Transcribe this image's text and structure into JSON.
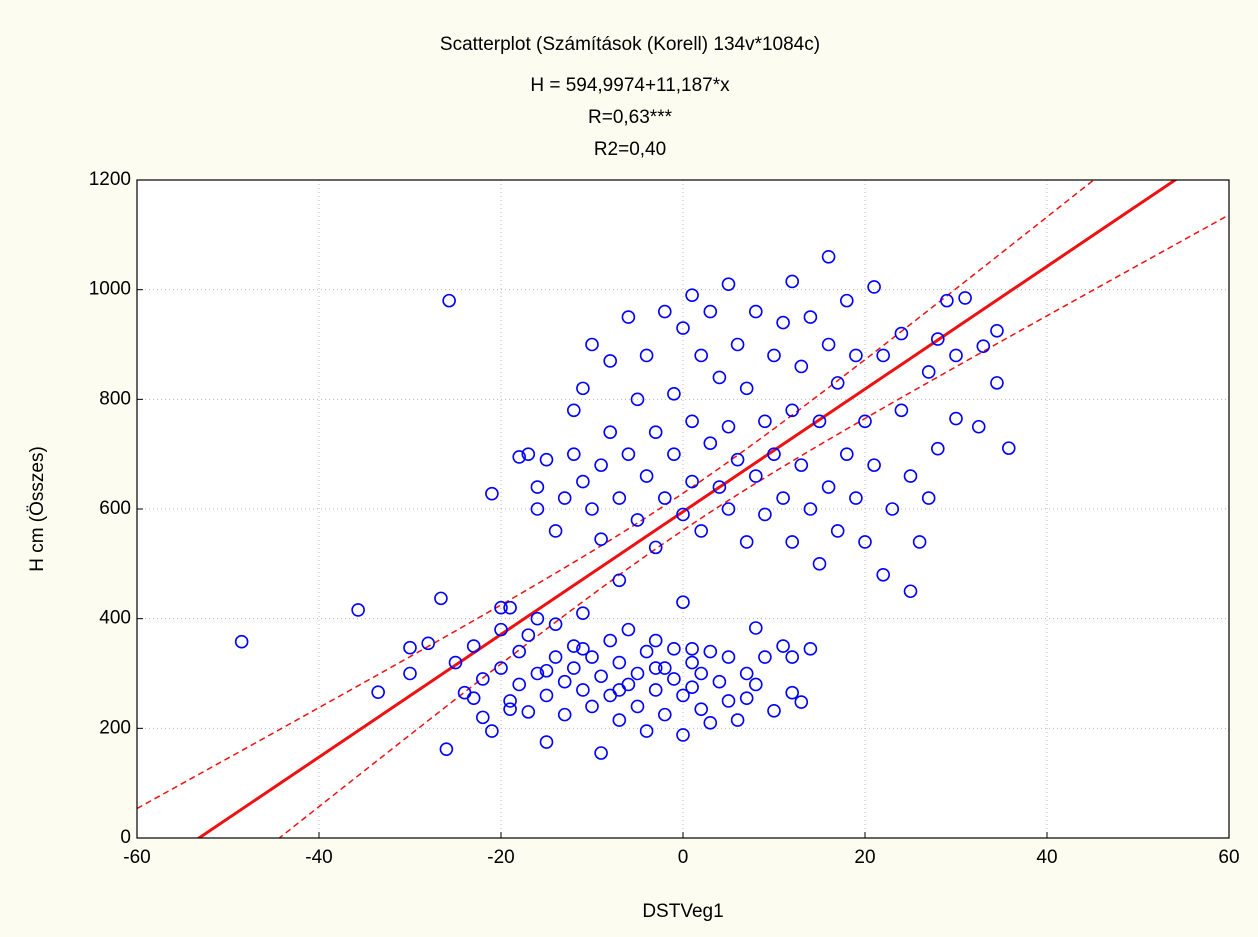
{
  "chart_data": {
    "type": "scatter",
    "title": "Scatterplot (Számítások (Korell) 134v*1084c)",
    "subtitle": [
      "H = 594,9974+11,187*x",
      "R=0,63***",
      "R2=0,40"
    ],
    "x_label": "DSTVeg1",
    "y_label": "H cm  (Összes)",
    "xlim": [
      -60,
      60
    ],
    "xticks": [
      -60,
      -40,
      -20,
      0,
      20,
      40,
      60
    ],
    "ylim": [
      0,
      1200
    ],
    "yticks": [
      0,
      200,
      400,
      600,
      800,
      1000,
      1200
    ],
    "grid": true,
    "fit": {
      "intercept": 594.9974,
      "slope": 11.187,
      "color": "#ee1111"
    },
    "series": [
      {
        "color": "#0000ff",
        "x": [
          -48.5,
          -35.7,
          -33.5,
          -26.6,
          -25.7,
          -26,
          -21,
          -30,
          -30,
          -28,
          35.8,
          34.5,
          34.5,
          31,
          33,
          32.5,
          -25,
          -24,
          -23,
          -22,
          -22,
          -21,
          -20,
          -20,
          -19,
          -19,
          -18,
          -18,
          -17,
          -17,
          -16,
          -16,
          -15,
          -15,
          -14,
          -14,
          -13,
          -13,
          -12,
          -12,
          -11,
          -11,
          -10,
          -10,
          -9,
          -9,
          -8,
          -8,
          -7,
          -7,
          -6,
          -6,
          -5,
          -5,
          -4,
          -4,
          -3,
          -3,
          -2,
          -2,
          -1,
          -1,
          0,
          0,
          1,
          1,
          2,
          2,
          3,
          3,
          4,
          5,
          5,
          6,
          7,
          7,
          8,
          8,
          9,
          10,
          11,
          12,
          12,
          13,
          14,
          -23,
          -19,
          -15,
          -11,
          -7,
          -3,
          1,
          -14,
          -13,
          -12,
          -12,
          -11,
          -11,
          -10,
          -10,
          -9,
          -9,
          -8,
          -8,
          -7,
          -7,
          -6,
          -6,
          -5,
          -5,
          -4,
          -4,
          -3,
          -3,
          -2,
          -2,
          -1,
          -1,
          0,
          0,
          0,
          1,
          1,
          1,
          2,
          2,
          3,
          3,
          4,
          4,
          5,
          5,
          5,
          6,
          6,
          7,
          7,
          8,
          8,
          9,
          9,
          10,
          10,
          11,
          11,
          12,
          12,
          12,
          13,
          13,
          14,
          14,
          15,
          15,
          16,
          16,
          16,
          17,
          17,
          18,
          18,
          19,
          19,
          20,
          20,
          21,
          21,
          22,
          22,
          23,
          24,
          24,
          25,
          25,
          26,
          27,
          27,
          28,
          28,
          29,
          30,
          30,
          -17,
          -16,
          -15,
          -18,
          -16,
          -20
        ],
        "values": [
          358,
          416,
          266,
          437,
          980,
          162,
          628,
          347,
          300,
          355,
          711,
          830,
          925,
          985,
          897,
          750,
          320,
          265,
          350,
          290,
          220,
          195,
          380,
          310,
          250,
          420,
          340,
          280,
          230,
          370,
          300,
          400,
          260,
          175,
          330,
          390,
          285,
          225,
          350,
          310,
          270,
          410,
          240,
          330,
          295,
          155,
          360,
          260,
          320,
          215,
          280,
          380,
          300,
          240,
          340,
          195,
          270,
          360,
          310,
          225,
          290,
          345,
          260,
          188,
          320,
          275,
          300,
          235,
          340,
          210,
          285,
          250,
          330,
          215,
          300,
          255,
          383,
          280,
          330,
          232,
          350,
          265,
          330,
          248,
          345,
          255,
          235,
          305,
          345,
          270,
          310,
          345,
          560,
          620,
          700,
          780,
          650,
          820,
          600,
          900,
          680,
          545,
          740,
          870,
          620,
          470,
          700,
          950,
          580,
          800,
          660,
          880,
          740,
          530,
          620,
          960,
          700,
          810,
          590,
          930,
          430,
          650,
          990,
          760,
          560,
          880,
          720,
          960,
          640,
          840,
          600,
          1010,
          750,
          690,
          900,
          540,
          820,
          660,
          960,
          590,
          760,
          880,
          700,
          620,
          940,
          540,
          1015,
          780,
          680,
          860,
          600,
          950,
          500,
          760,
          1060,
          640,
          900,
          560,
          830,
          700,
          980,
          620,
          880,
          540,
          760,
          1005,
          680,
          880,
          480,
          600,
          780,
          920,
          660,
          450,
          540,
          850,
          620,
          710,
          910,
          980,
          765,
          880,
          700,
          640,
          690,
          695,
          600,
          420
        ]
      }
    ]
  }
}
